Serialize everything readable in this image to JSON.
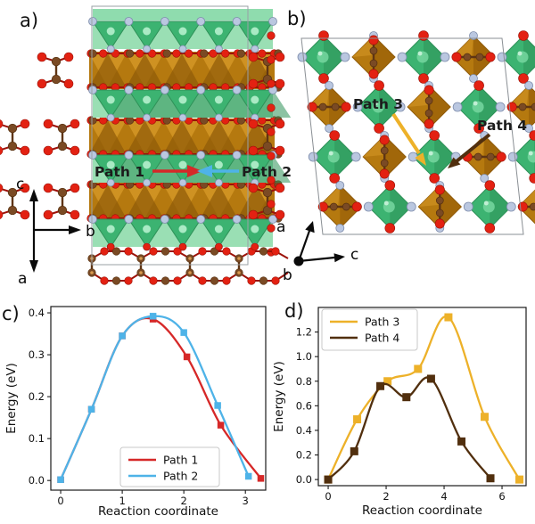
{
  "figure": {
    "panels": {
      "a": {
        "label": "a)",
        "path_labels": [
          "Path 1",
          "Path 2"
        ],
        "axis_up": "c",
        "axis_right": "b",
        "axis_down": "a"
      },
      "b": {
        "label": "b)",
        "path_labels": [
          "Path 3",
          "Path 4"
        ],
        "axis_up": "a",
        "axis_right": "c",
        "axis_origin": "b"
      },
      "c": {
        "label": "c)"
      },
      "d": {
        "label": "d)"
      }
    },
    "structure_colors": {
      "tetrahedra_green": "#3cb371",
      "octahedra_ochre": "#b5790f",
      "red_atoms": "#e32112",
      "pale_blue_atoms": "#bac7e0",
      "brown_atoms": "#7a4a24"
    }
  },
  "chart_data": [
    {
      "id": "chart-c",
      "panel": "c",
      "type": "line",
      "xlabel": "Reaction coordinate",
      "ylabel": "Energy (eV)",
      "xlim": [
        -0.16,
        3.33
      ],
      "ylim": [
        -0.023,
        0.415
      ],
      "xticks": [
        0,
        1,
        2,
        3
      ],
      "yticks": [
        0.0,
        0.1,
        0.2,
        0.3,
        0.4
      ],
      "ytick_decimals": 1,
      "grid": false,
      "legend_position": "lower right",
      "series": [
        {
          "name": "Path 1",
          "color": "#d62828",
          "marker": "square",
          "x": [
            0,
            0.5,
            1.0,
            1.5,
            2.05,
            2.6,
            3.25
          ],
          "y": [
            0.002,
            0.17,
            0.345,
            0.385,
            0.295,
            0.132,
            0.005
          ]
        },
        {
          "name": "Path 2",
          "color": "#4eb3e8",
          "marker": "square",
          "x": [
            0,
            0.5,
            1.0,
            1.5,
            2.0,
            2.55,
            3.05
          ],
          "y": [
            0.002,
            0.17,
            0.345,
            0.392,
            0.353,
            0.179,
            0.01
          ]
        }
      ]
    },
    {
      "id": "chart-d",
      "panel": "d",
      "type": "line",
      "xlabel": "Reaction coordinate",
      "ylabel": "Energy (eV)",
      "xlim": [
        -0.34,
        6.83
      ],
      "ylim": [
        -0.05,
        1.4
      ],
      "xticks": [
        0,
        2,
        4,
        6
      ],
      "yticks": [
        0.0,
        0.2,
        0.4,
        0.6,
        0.8,
        1.0,
        1.2
      ],
      "ytick_decimals": 1,
      "grid": false,
      "legend_position": "upper left",
      "series": [
        {
          "name": "Path 3",
          "color": "#edb129",
          "marker": "square",
          "x": [
            0,
            1.0,
            2.05,
            3.1,
            4.15,
            5.4,
            6.6
          ],
          "y": [
            0.0,
            0.49,
            0.8,
            0.9,
            1.32,
            0.51,
            0.0
          ]
        },
        {
          "name": "Path 4",
          "color": "#512f0e",
          "marker": "square",
          "x": [
            0,
            0.9,
            1.8,
            2.7,
            3.55,
            4.6,
            5.6
          ],
          "y": [
            0.0,
            0.23,
            0.76,
            0.67,
            0.82,
            0.31,
            0.01
          ]
        }
      ]
    }
  ]
}
